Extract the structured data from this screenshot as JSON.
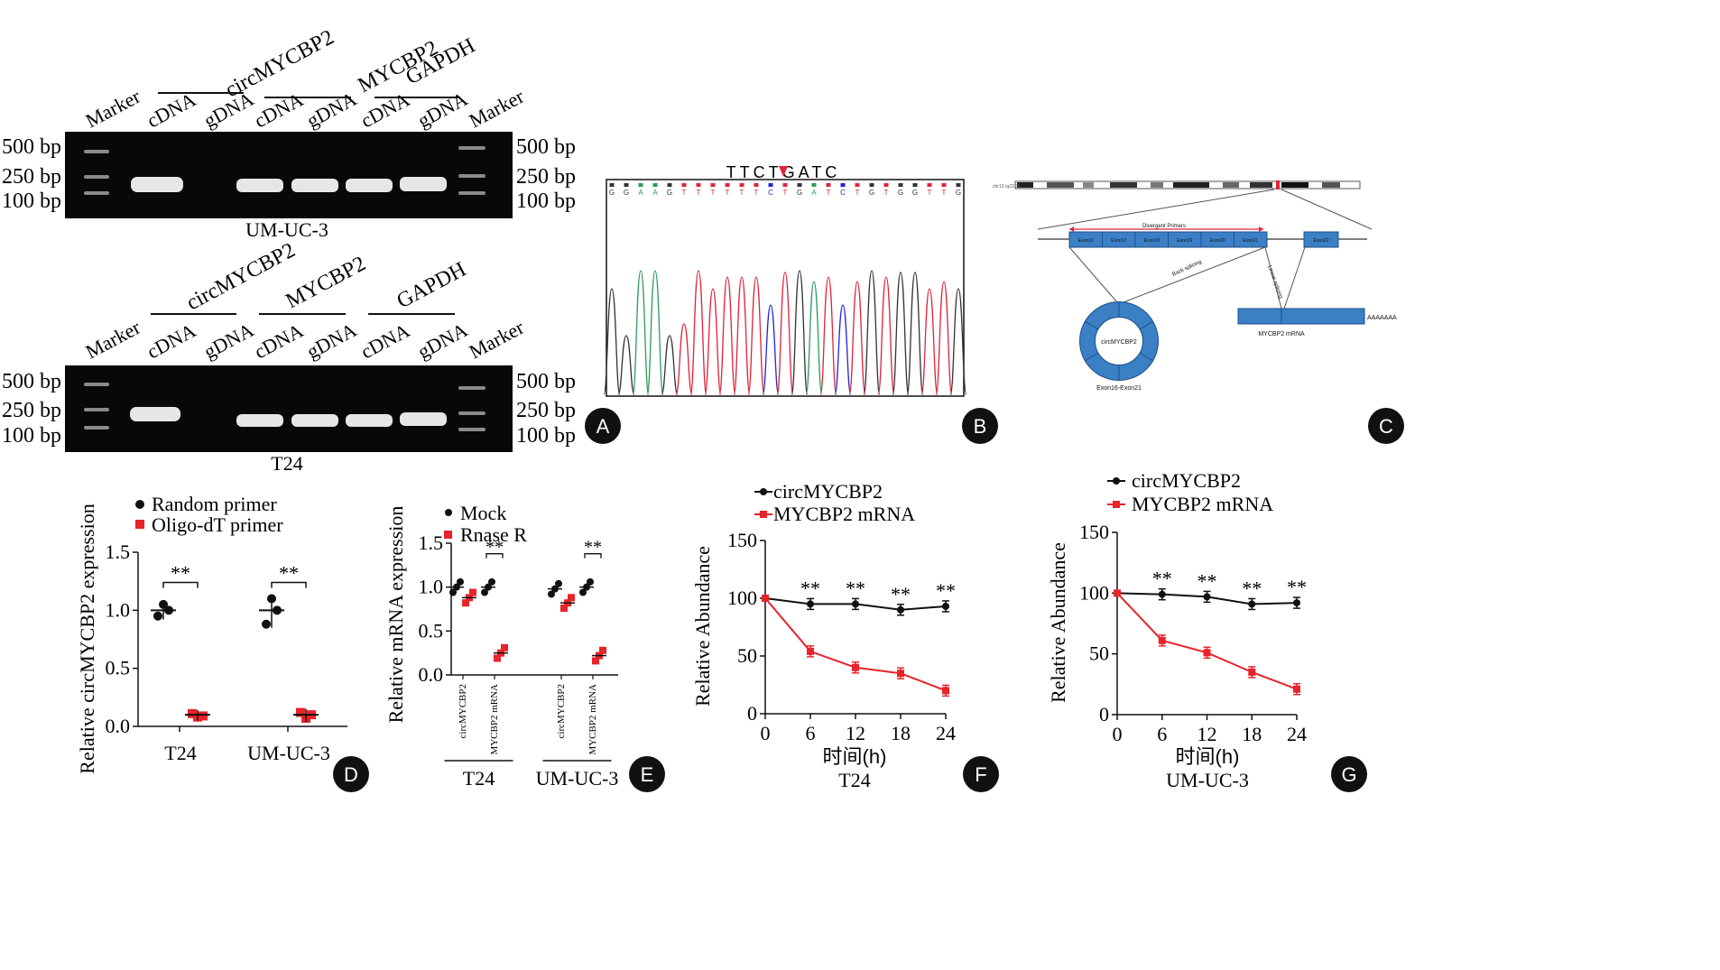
{
  "panel_labels": [
    "A",
    "B",
    "C",
    "D",
    "E",
    "F",
    "G"
  ],
  "colors": {
    "black": "#111111",
    "red": "#e8232a",
    "gel": "#080808",
    "band": "#e6e6e6",
    "dna_a": "#2d9b5a",
    "dna_c": "#2323d6",
    "dna_g": "#333333",
    "dna_t": "#e0233a",
    "circ_blue": "#3b7fc4"
  },
  "gel": {
    "groups": [
      "circMYCBP2",
      "MYCBP2",
      "GAPDH"
    ],
    "lanes": [
      "Marker",
      "cDNA",
      "gDNA",
      "cDNA",
      "gDNA",
      "cDNA",
      "gDNA",
      "Marker"
    ],
    "sizes": [
      "500 bp",
      "250 bp",
      "100 bp"
    ],
    "cell_lines": [
      "UM-UC-3",
      "T24"
    ]
  },
  "sanger": {
    "junction_seq": "TTCTGATC",
    "bases": [
      "G",
      "G",
      "A",
      "A",
      "G",
      "T",
      "T",
      "T",
      "T",
      "T",
      "T",
      "C",
      "T",
      "G",
      "A",
      "T",
      "C",
      "T",
      "G",
      "T",
      "G",
      "G",
      "T",
      "T",
      "G"
    ]
  },
  "schematic": {
    "top_exons": [
      "Exon16",
      "Exon17",
      "Exon18",
      "Exon19",
      "Exon20",
      "Exon21"
    ],
    "right_exon": "Exon22",
    "divergent_primers": "Divergent Primers",
    "back_splicing": "Back splicing",
    "linear_splicing": "Linear splicing",
    "circ_label": "circMYCBP2",
    "mrna_label": "MYCBP2 mRNA",
    "polya": "AAAAAAA",
    "exon_range": "Exon16-Exon21",
    "chromosome": "chr13 (q22.3)"
  },
  "chart_data": [
    {
      "id": "D",
      "type": "scatter",
      "ylabel": "Relative circMYCBP2 expression",
      "categories": [
        "T24",
        "UM-UC-3"
      ],
      "ylim": [
        0,
        1.5
      ],
      "yticks": [
        "0.0",
        "0.5",
        "1.0",
        "1.5"
      ],
      "series": [
        {
          "name": "Random primer",
          "color": "#111111",
          "points": [
            [
              1.05,
              0.95,
              1.0
            ],
            [
              1.1,
              0.88,
              1.0
            ]
          ],
          "means": [
            1.0,
            1.0
          ]
        },
        {
          "name": "Oligo-dT primer",
          "color": "#e8232a",
          "points": [
            [
              0.08,
              0.11,
              0.09
            ],
            [
              0.07,
              0.12,
              0.1
            ]
          ],
          "means": [
            0.1,
            0.1
          ]
        }
      ],
      "significance": [
        "**",
        "**"
      ]
    },
    {
      "id": "E",
      "type": "scatter",
      "ylabel": "Relative mRNA expression",
      "groups": [
        "T24",
        "UM-UC-3"
      ],
      "xticks": [
        "circMYCBP2",
        "MYCBP2 mRNA",
        "circMYCBP2",
        "MYCBP2 mRNA"
      ],
      "ylim": [
        0,
        1.5
      ],
      "yticks": [
        "0.0",
        "0.5",
        "1.0",
        "1.5"
      ],
      "series": [
        {
          "name": "Mock",
          "color": "#111111",
          "values": [
            1.0,
            1.0,
            0.98,
            1.0
          ]
        },
        {
          "name": "Rnase R",
          "color": "#e8232a",
          "values": [
            0.88,
            0.25,
            0.82,
            0.22
          ]
        }
      ],
      "significance_label": "**"
    },
    {
      "id": "F",
      "type": "line",
      "subtitle": "T24",
      "xlabel": "时间(h)",
      "ylabel": "Relative Abundance",
      "x": [
        0,
        6,
        12,
        18,
        24
      ],
      "ylim": [
        0,
        150
      ],
      "yticks": [
        0,
        50,
        100,
        150
      ],
      "series": [
        {
          "name": "circMYCBP2",
          "color": "#111111",
          "values": [
            100,
            95,
            95,
            90,
            93
          ]
        },
        {
          "name": "MYCBP2 mRNA",
          "color": "#e8232a",
          "values": [
            100,
            54,
            40,
            35,
            20
          ]
        }
      ],
      "significance": [
        "**",
        "**",
        "**",
        "**"
      ]
    },
    {
      "id": "G",
      "type": "line",
      "subtitle": "UM-UC-3",
      "xlabel": "时间(h)",
      "ylabel": "Relative Abundance",
      "x": [
        0,
        6,
        12,
        18,
        24
      ],
      "ylim": [
        0,
        150
      ],
      "yticks": [
        0,
        50,
        100,
        150
      ],
      "series": [
        {
          "name": "circMYCBP2",
          "color": "#111111",
          "values": [
            100,
            99,
            97,
            91,
            92
          ]
        },
        {
          "name": "MYCBP2 mRNA",
          "color": "#e8232a",
          "values": [
            100,
            61,
            51,
            35,
            21
          ]
        }
      ],
      "significance": [
        "**",
        "**",
        "**",
        "**"
      ]
    }
  ]
}
